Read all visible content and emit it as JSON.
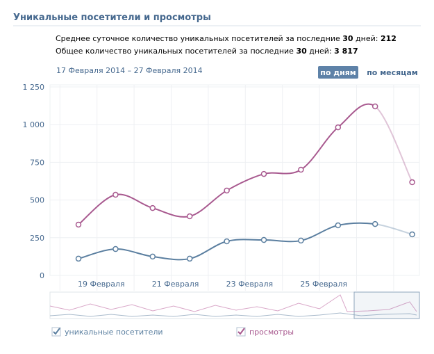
{
  "header": {
    "title": "Уникальные посетители и просмотры"
  },
  "stats": [
    {
      "text": "Среднее суточное количество уникальных посетителей за последние ",
      "days": "30",
      "suffix": " дней: ",
      "value": "212"
    },
    {
      "text": "Общее количество уникальных посетителей за последние ",
      "days": "30",
      "suffix": " дней: ",
      "value": "3 817"
    }
  ],
  "date_range": "17 Февраля 2014 – 27 Февраля 2014",
  "buttons": [
    "по дням",
    "по месяцам"
  ],
  "chart_data": {
    "type": "line",
    "categories": [
      "19 Февраля",
      null,
      "21 Февраля",
      null,
      "23 Февраля",
      null,
      "25 Февраля",
      null,
      null,
      null
    ],
    "series": [
      {
        "name": "уникальные посетители",
        "color": "#5b7fa0",
        "values": [
          111,
          175,
          125,
          111,
          226,
          235,
          231,
          332,
          341,
          272
        ]
      },
      {
        "name": "просмотры",
        "color": "#a8598f",
        "values": [
          337,
          535,
          447,
          392,
          563,
          673,
          701,
          982,
          1121,
          618
        ]
      }
    ],
    "ylim": [
      0,
      1250
    ],
    "yticks": [
      0,
      250,
      500,
      750,
      {
        "value": 1000,
        "label": "1 000"
      },
      {
        "value": 1250,
        "label": "1 250"
      }
    ],
    "grid": true
  }
}
